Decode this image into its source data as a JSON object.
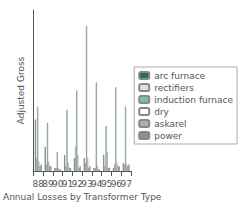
{
  "chart_data": {
    "type": "bar",
    "xlabel": "Annual Losses by Transformer Type",
    "ylabel": "Adjusted Gross",
    "categories": [
      "88",
      "89",
      "90",
      "91",
      "92",
      "93",
      "94",
      "95",
      "96",
      "97"
    ],
    "series": [
      {
        "name": "arc furnace",
        "color": "#2d6a4f",
        "values": [
          32,
          15,
          2,
          10,
          8,
          8,
          2,
          10,
          2,
          5
        ]
      },
      {
        "name": "rectifiers",
        "color": "#e0e0e0",
        "values": [
          8,
          4,
          2,
          3,
          15,
          5,
          2,
          3,
          4,
          4
        ]
      },
      {
        "name": "induction furnace",
        "color": "#74c69d",
        "values": [
          40,
          30,
          12,
          38,
          50,
          90,
          55,
          28,
          52,
          40
        ]
      },
      {
        "name": "dry",
        "color": "#ffffff",
        "values": [
          6,
          6,
          2,
          5,
          10,
          8,
          3,
          12,
          5,
          4
        ]
      },
      {
        "name": "askarel",
        "color": "#b0b0b0",
        "values": [
          3,
          3,
          1,
          2,
          2,
          2,
          1,
          2,
          3,
          3
        ]
      },
      {
        "name": "power",
        "color": "#909090",
        "values": [
          4,
          3,
          1,
          2,
          3,
          3,
          1,
          2,
          3,
          4
        ]
      }
    ],
    "ylim": [
      0,
      100
    ],
    "yticks": [],
    "grid": false,
    "tick_labels": "x",
    "legend": "right"
  }
}
